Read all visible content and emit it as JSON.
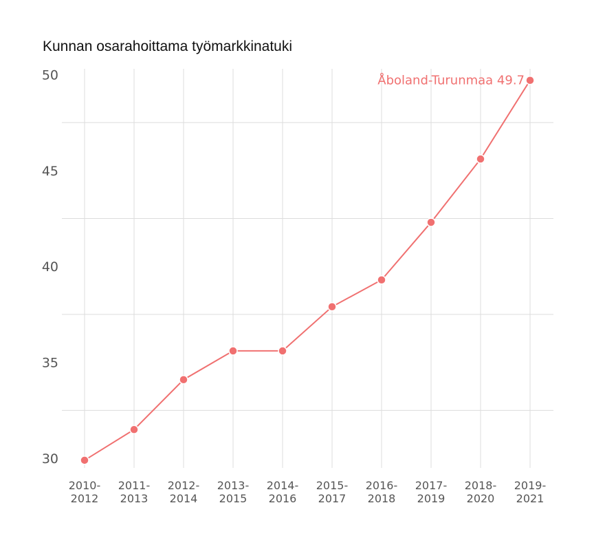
{
  "chart_data": {
    "type": "line",
    "title": "Kunnan osarahoittama työmarkkinatuki",
    "xlabel": "",
    "ylabel": "",
    "categories": [
      [
        "2010-",
        "2012"
      ],
      [
        "2011-",
        "2013"
      ],
      [
        "2012-",
        "2014"
      ],
      [
        "2013-",
        "2015"
      ],
      [
        "2014-",
        "2016"
      ],
      [
        "2015-",
        "2017"
      ],
      [
        "2016-",
        "2018"
      ],
      [
        "2017-",
        "2019"
      ],
      [
        "2018-",
        "2020"
      ],
      [
        "2019-",
        "2021"
      ]
    ],
    "series": [
      {
        "name": "Åboland-Turunmaa",
        "color": "#f07070",
        "values": [
          29.9,
          31.5,
          34.1,
          35.6,
          35.6,
          37.9,
          39.3,
          42.3,
          45.6,
          49.7
        ],
        "end_label": "Åboland-Turunmaa 49.7"
      }
    ],
    "ylim": [
      29.5,
      50.3
    ],
    "yticks": [
      30,
      35,
      40,
      45,
      50
    ],
    "minor_yticks": [
      32.5,
      37.5,
      42.5,
      47.5
    ],
    "grid": true,
    "legend": "none"
  }
}
